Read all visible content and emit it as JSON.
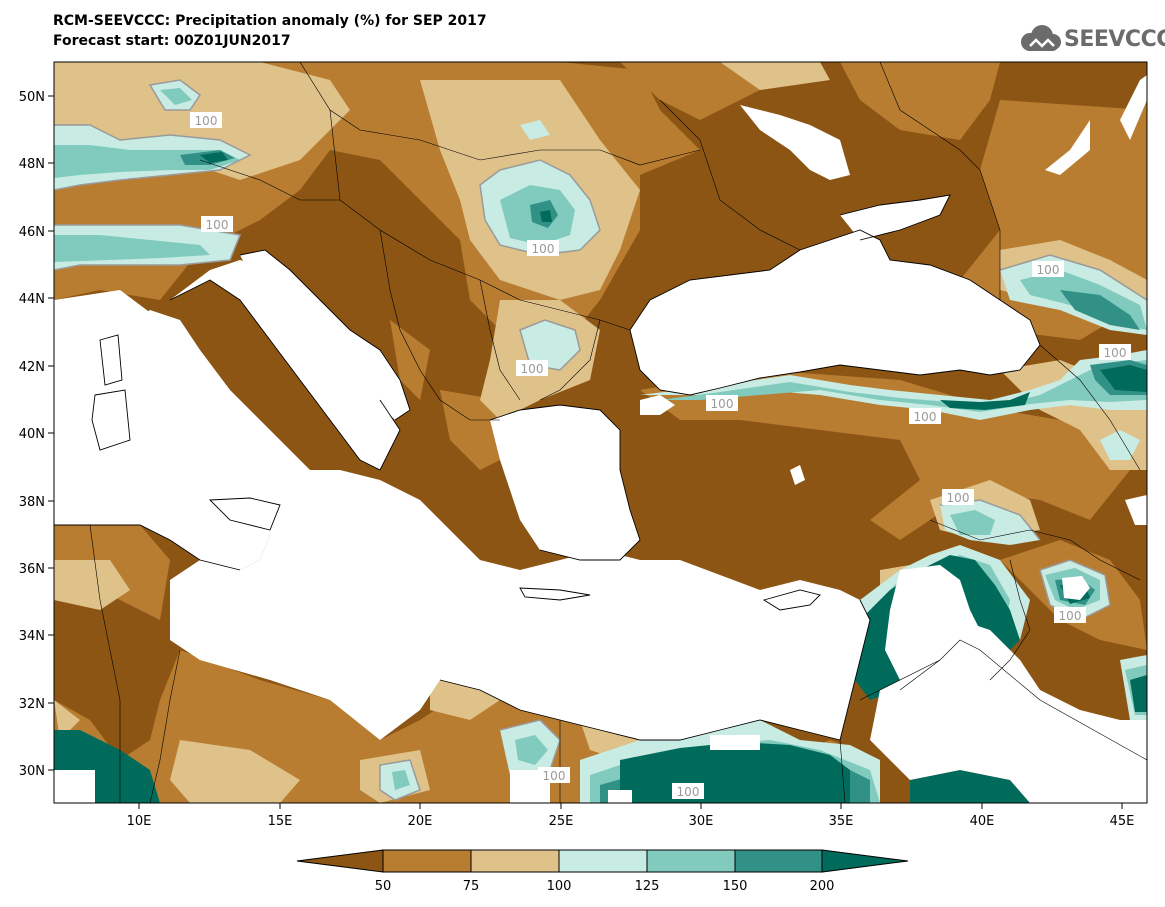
{
  "title_line1": "RCM-SEEVCCC: Precipitation anomaly (%) for SEP 2017",
  "title_line2": "Forecast start: 00Z01JUN2017",
  "logo_text": "SEEVCCC",
  "icons": [
    "cloud-logo-icon"
  ],
  "colors": {
    "class_lt50": "#8c5514",
    "class_50_75": "#b87d30",
    "class_75_100": "#dec28a",
    "class_100_125": "#c8ebe3",
    "class_125_150": "#80cbbd",
    "class_150_200": "#329186",
    "class_gt200": "#006b5a",
    "sea": "#ffffff",
    "border": "#000000"
  },
  "map": {
    "lon_ticks": [
      "10E",
      "15E",
      "20E",
      "25E",
      "30E",
      "35E",
      "40E",
      "45E"
    ],
    "lat_ticks": [
      "50N",
      "48N",
      "46N",
      "44N",
      "42N",
      "40N",
      "38N",
      "36N",
      "34N",
      "32N",
      "30N"
    ],
    "contour_labels": [
      "100",
      "100",
      "100",
      "100",
      "100",
      "100",
      "100",
      "100",
      "100",
      "100",
      "100",
      "100"
    ]
  },
  "legend": {
    "tick_labels": [
      "50",
      "75",
      "100",
      "125",
      "150",
      "200"
    ]
  }
}
